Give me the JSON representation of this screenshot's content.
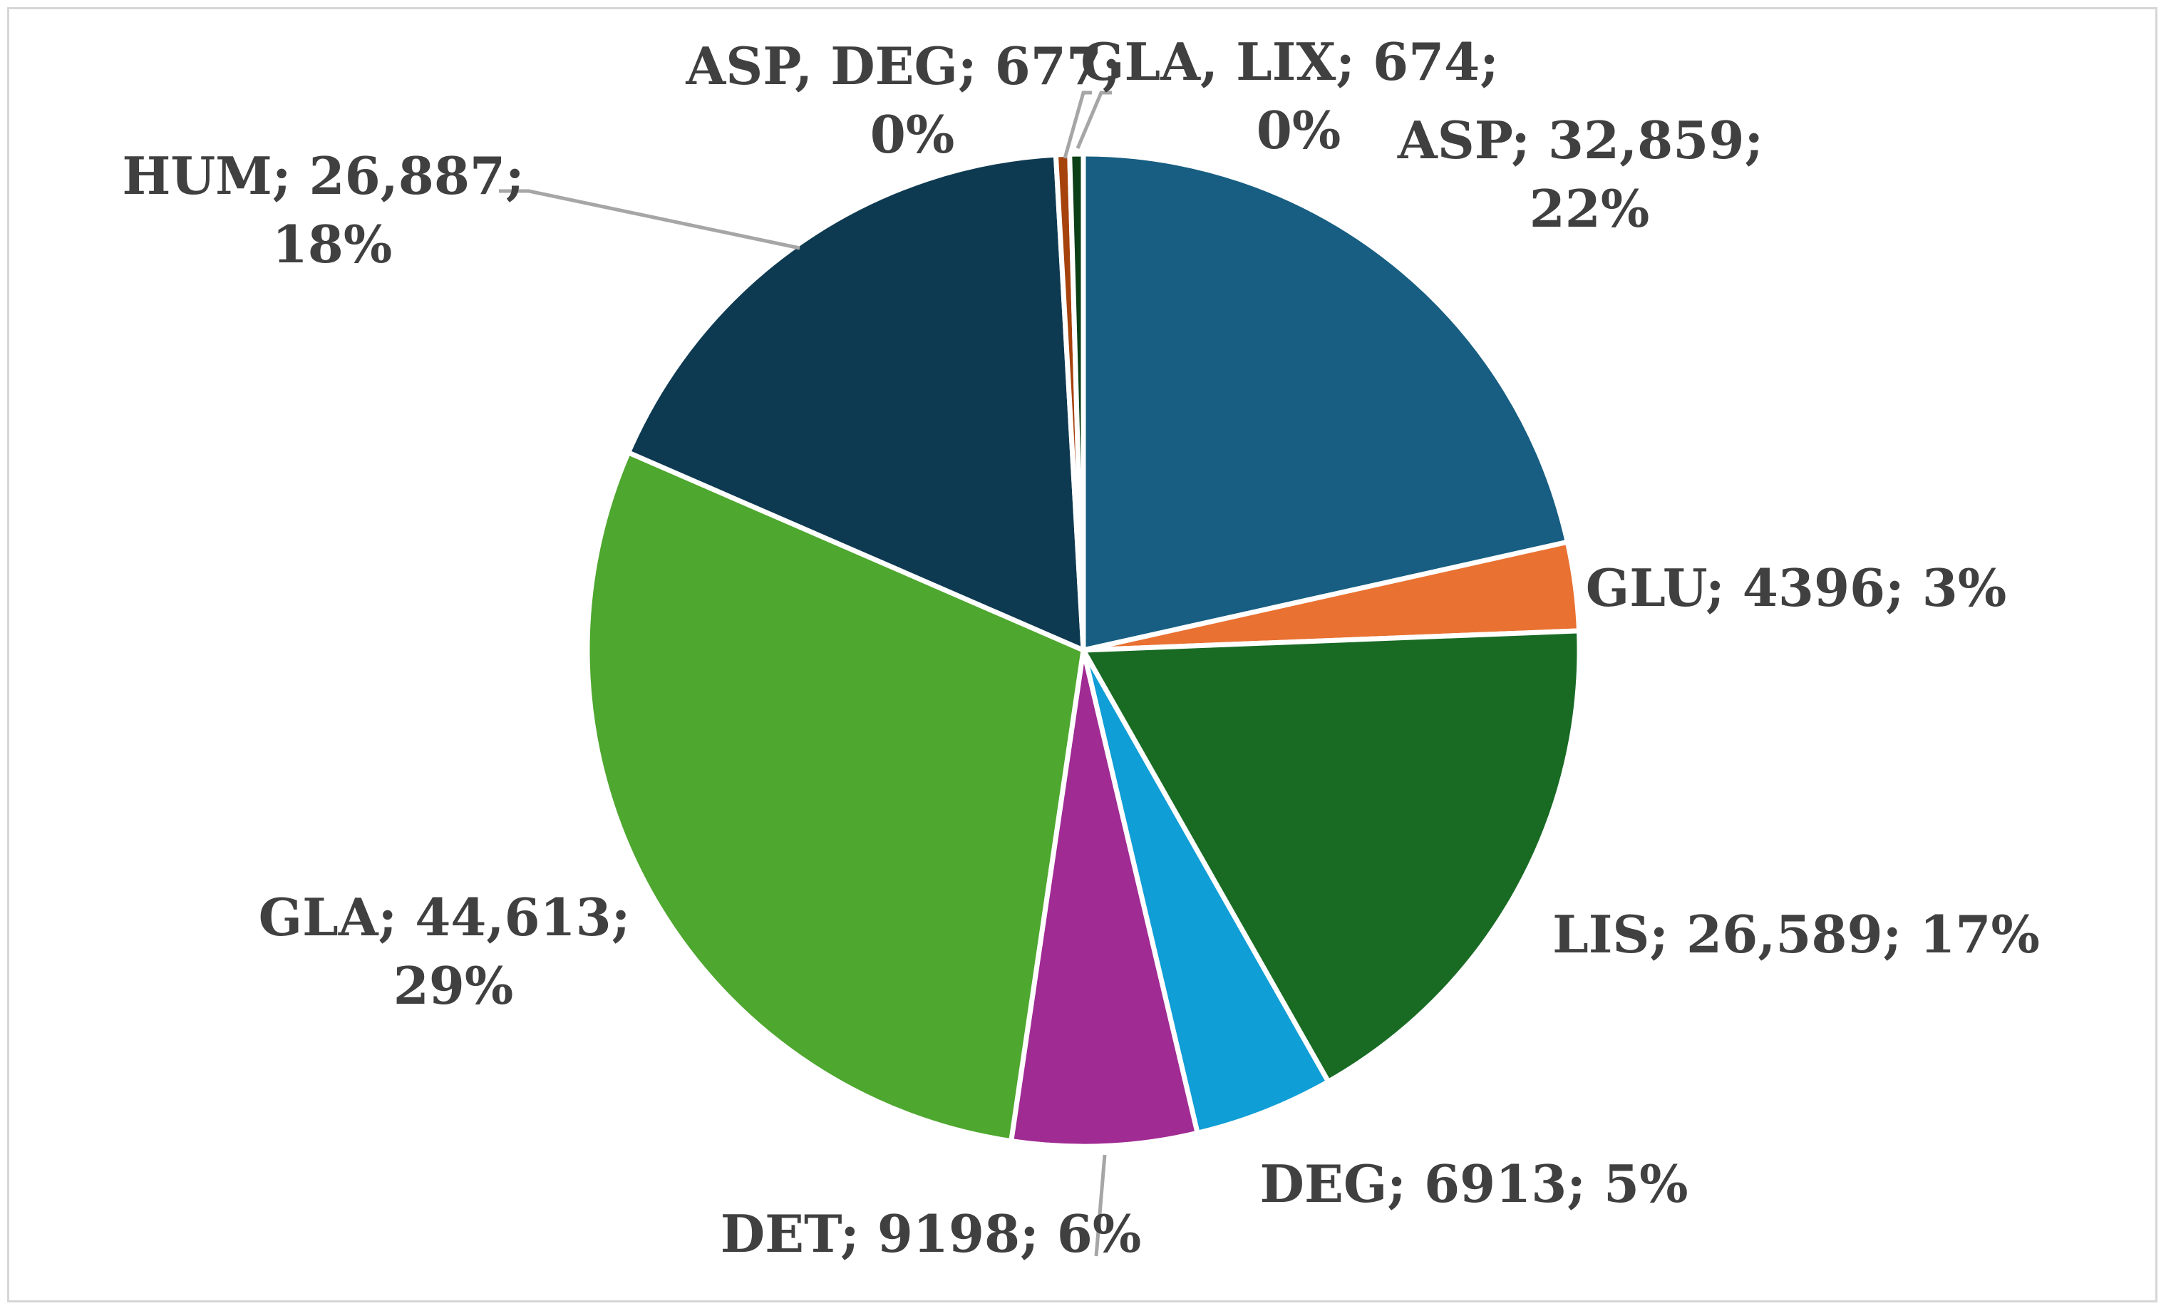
{
  "chart_data": {
    "type": "pie",
    "title": "",
    "start_angle_deg": 0,
    "direction": "clockwise",
    "slices": [
      {
        "key": "asp",
        "name": "ASP",
        "value": 32859,
        "value_label": "32,859",
        "percent_label": "22%",
        "color": "#175e82"
      },
      {
        "key": "glu",
        "name": "GLU",
        "value": 4396,
        "value_label": "4396",
        "percent_label": "3%",
        "color": "#e97132"
      },
      {
        "key": "lis",
        "name": "LIS",
        "value": 26589,
        "value_label": "26,589",
        "percent_label": "17%",
        "color": "#196b24"
      },
      {
        "key": "deg",
        "name": "DEG",
        "value": 6913,
        "value_label": "6913",
        "percent_label": "5%",
        "color": "#0f9ed5"
      },
      {
        "key": "det",
        "name": "DET",
        "value": 9198,
        "value_label": "9198",
        "percent_label": "6%",
        "color": "#a02b93"
      },
      {
        "key": "gla",
        "name": "GLA",
        "value": 44613,
        "value_label": "44,613",
        "percent_label": "29%",
        "color": "#4ea72e"
      },
      {
        "key": "hum",
        "name": "HUM",
        "value": 26887,
        "value_label": "26,887",
        "percent_label": "18%",
        "color": "#0e3a51"
      },
      {
        "key": "asp_deg",
        "name": "ASP, DEG",
        "value": 677,
        "value_label": "677",
        "percent_label": "0%",
        "color": "#a6420b"
      },
      {
        "key": "gla_lix",
        "name": "GLA, LIX",
        "value": 674,
        "value_label": "674",
        "percent_label": "0%",
        "color": "#0b3f16"
      }
    ]
  },
  "labels": {
    "asp": {
      "line1": "ASP; 32,859;",
      "line2": "22%"
    },
    "glu": {
      "line1": "GLU; 4396; 3%"
    },
    "lis": {
      "line1": "LIS; 26,589; 17%"
    },
    "deg": {
      "line1": "DEG; 6913; 5%"
    },
    "det": {
      "line1": "DET; 9198; 6%"
    },
    "gla": {
      "line1": "GLA; 44,613;",
      "line2": "29%"
    },
    "hum": {
      "line1": "HUM; 26,887;",
      "line2": "18%"
    },
    "asp_deg": {
      "line1": "ASP, DEG; 677;",
      "line2": "0%"
    },
    "gla_lix": {
      "line1": "GLA, LIX; 674;",
      "line2": "0%"
    }
  }
}
